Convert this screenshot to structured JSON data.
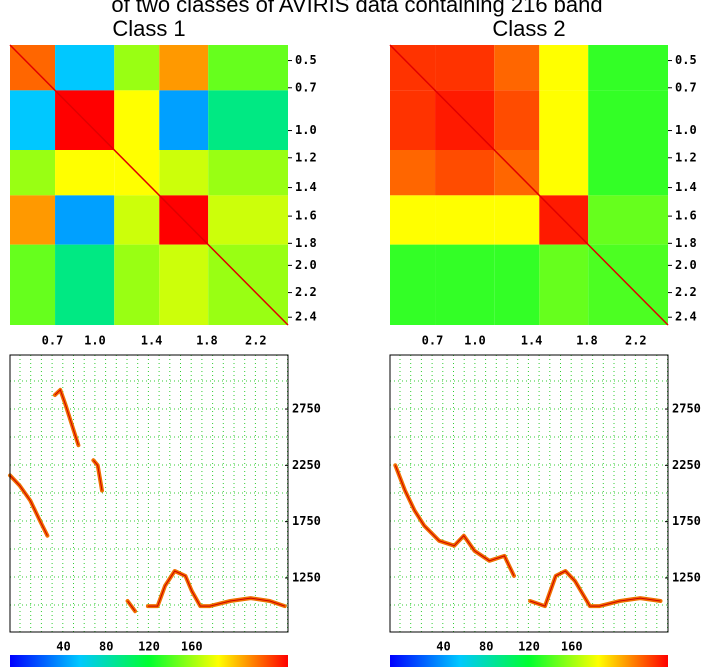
{
  "title": "of two classes of AVIRIS data containing 216 band",
  "chart_data": [
    {
      "type": "heatmap",
      "title": "Class 1",
      "block_edges": [
        0,
        35,
        81,
        116,
        154,
        216
      ],
      "values": [
        [
          0.8,
          -0.5,
          0.3,
          0.7,
          0.2
        ],
        [
          -0.5,
          1,
          0.5,
          -0.6,
          -0.2
        ],
        [
          0.3,
          0.5,
          0.5,
          0.4,
          0.3
        ],
        [
          0.7,
          -0.6,
          0.4,
          1,
          0.4
        ],
        [
          0.2,
          -0.2,
          0.3,
          0.4,
          0.3
        ]
      ],
      "clim": [
        -1,
        1
      ],
      "xlim": [
        0,
        216
      ],
      "ylim": [
        0,
        216
      ],
      "yticks": [
        {
          "value": 12,
          "label": "0.5"
        },
        {
          "value": 33,
          "label": "0.7"
        },
        {
          "value": 66,
          "label": "1.0"
        },
        {
          "value": 87,
          "label": "1.2"
        },
        {
          "value": 110,
          "label": "1.4"
        },
        {
          "value": 132,
          "label": "1.6"
        },
        {
          "value": 153,
          "label": "1.8"
        },
        {
          "value": 170,
          "label": "2.0"
        },
        {
          "value": 191,
          "label": "2.2"
        },
        {
          "value": 210,
          "label": "2.4"
        }
      ],
      "xticks": [
        {
          "value": 33,
          "label": "0.7"
        },
        {
          "value": 66,
          "label": "1.0"
        },
        {
          "value": 110,
          "label": "1.4"
        },
        {
          "value": 153,
          "label": "1.8"
        },
        {
          "value": 191,
          "label": "2.2"
        }
      ]
    },
    {
      "type": "heatmap",
      "title": "Class 2",
      "block_edges": [
        0,
        35,
        81,
        116,
        154,
        216
      ],
      "values": [
        [
          0.9,
          0.9,
          0.8,
          0.5,
          0.1
        ],
        [
          0.9,
          0.95,
          0.85,
          0.5,
          0.1
        ],
        [
          0.8,
          0.85,
          0.8,
          0.5,
          0.1
        ],
        [
          0.5,
          0.5,
          0.5,
          0.95,
          0.2
        ],
        [
          0.1,
          0.1,
          0.1,
          0.2,
          0.15
        ]
      ],
      "clim": [
        -1,
        1
      ],
      "xlim": [
        0,
        216
      ],
      "ylim": [
        0,
        216
      ],
      "yticks": [
        {
          "value": 12,
          "label": "0.5"
        },
        {
          "value": 33,
          "label": "0.7"
        },
        {
          "value": 66,
          "label": "1.0"
        },
        {
          "value": 87,
          "label": "1.2"
        },
        {
          "value": 110,
          "label": "1.4"
        },
        {
          "value": 132,
          "label": "1.6"
        },
        {
          "value": 153,
          "label": "1.8"
        },
        {
          "value": 170,
          "label": "2.0"
        },
        {
          "value": 191,
          "label": "2.2"
        },
        {
          "value": 210,
          "label": "2.4"
        }
      ],
      "xticks": [
        {
          "value": 33,
          "label": "0.7"
        },
        {
          "value": 66,
          "label": "1.0"
        },
        {
          "value": 110,
          "label": "1.4"
        },
        {
          "value": 153,
          "label": "1.8"
        },
        {
          "value": 191,
          "label": "2.2"
        }
      ]
    },
    {
      "type": "line",
      "color": "#f07000",
      "x": [
        -10,
        -1,
        9,
        18,
        25,
        null,
        32,
        37,
        42,
        48,
        54,
        null,
        68,
        72,
        76,
        null,
        100,
        107,
        null,
        119,
        128,
        135,
        144,
        154,
        160,
        168,
        177,
        196,
        215,
        233,
        247
      ],
      "values": [
        2161,
        2071,
        1937,
        1758,
        1625,
        null,
        2875,
        2920,
        2786,
        2607,
        2429,
        null,
        2295,
        2250,
        2027,
        null,
        1045,
        955,
        null,
        1000,
        1000,
        1179,
        1312,
        1268,
        1134,
        1000,
        1000,
        1045,
        1071,
        1045,
        1000
      ],
      "xlim": [
        -10,
        250
      ],
      "ylim": [
        770,
        3230
      ],
      "xticks": [
        40,
        80,
        120,
        160
      ],
      "yticks": [
        2750,
        2250,
        1750,
        1250
      ],
      "grid": true
    },
    {
      "type": "line",
      "color": "#f07000",
      "x": [
        -5,
        4,
        13,
        22,
        36,
        50,
        59,
        69,
        83,
        97,
        106,
        null,
        121,
        135,
        145,
        154,
        163,
        177,
        186,
        205,
        224,
        243
      ],
      "values": [
        2250,
        2027,
        1848,
        1714,
        1580,
        1536,
        1625,
        1491,
        1402,
        1446,
        1268,
        null,
        1045,
        1000,
        1268,
        1312,
        1223,
        1000,
        1000,
        1045,
        1071,
        1045
      ],
      "xlim": [
        -10,
        250
      ],
      "ylim": [
        770,
        3230
      ],
      "xticks": [
        40,
        80,
        120,
        160
      ],
      "yticks": [
        2750,
        2250,
        1750,
        1250
      ],
      "grid": true
    }
  ]
}
